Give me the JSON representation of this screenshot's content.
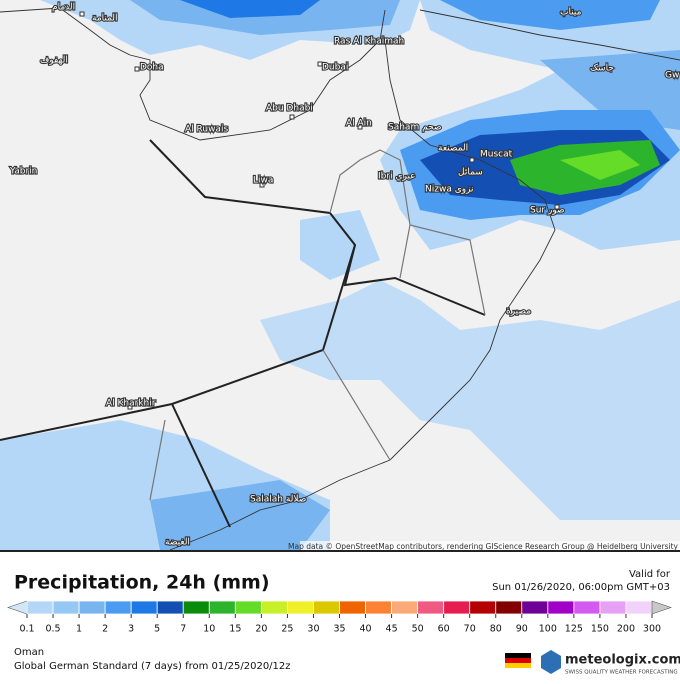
{
  "map": {
    "cities": [
      "الدمام",
      "المنامة",
      "الهفوف",
      "Doha",
      "Ras Al Khaimah",
      "Dubai",
      "Abu Dhabi",
      "Al Ruwais",
      "Al Ain",
      "Saham صحم",
      "المصنعة",
      "Muscat",
      "Ibri عبري",
      "سمائل",
      "Nizwa نزوى",
      "Sur صور",
      "Liwa",
      "Yabrin",
      "Al Kharkhir",
      "Salalah صلالة",
      "الغيضة",
      "Gw",
      "جاسک",
      "میناب",
      "مصيرة"
    ],
    "attribution": "Map data © OpenStreetMap contributors, rendering GIScience Research Group @ Heidelberg University"
  },
  "legend": {
    "title": "Precipitation, 24h (mm)",
    "valid_label": "Valid for",
    "valid_time": "Sun 01/26/2020, 06:00pm GMT+03",
    "labels": [
      0.1,
      0.5,
      1,
      2,
      3,
      5,
      7,
      10,
      15,
      20,
      25,
      30,
      35,
      40,
      45,
      50,
      60,
      70,
      80,
      90,
      100,
      125,
      150,
      200,
      300
    ],
    "colors": [
      "#d2e6fa",
      "#b4d7f8",
      "#96c8f5",
      "#78b4f0",
      "#4b9bf0",
      "#1e78e6",
      "#1450b4",
      "#0a8c0a",
      "#2db42d",
      "#64dc28",
      "#c8f028",
      "#f0f028",
      "#dcc800",
      "#f06400",
      "#fa8232",
      "#faaa78",
      "#f05a82",
      "#e61e50",
      "#b40000",
      "#820000",
      "#6e0096",
      "#a000c8",
      "#d25af0",
      "#e6a0f5",
      "#f0d2fa",
      "#c8c8c8"
    ]
  },
  "footer": {
    "region": "Oman",
    "model": "Global German Standard (7 days) from 01/25/2020/12z",
    "brand": "meteologix.com",
    "tagline": "SWISS QUALITY WEATHER FORECASTING"
  }
}
